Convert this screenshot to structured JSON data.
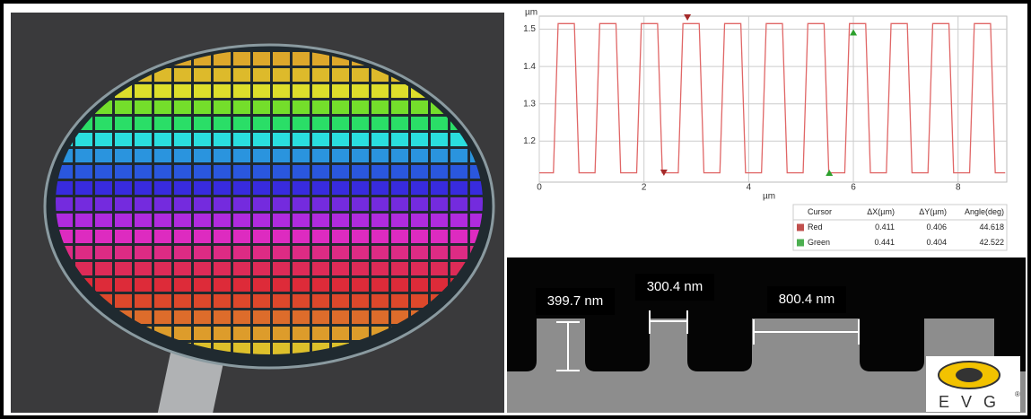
{
  "chart_data": {
    "type": "line",
    "y_label": "µm",
    "x_label": "µm",
    "x": [
      0,
      0.27,
      0.36,
      0.67,
      0.76,
      1.065,
      1.155,
      1.465,
      1.555,
      1.86,
      1.95,
      2.26,
      2.35,
      2.655,
      2.745,
      3.055,
      3.145,
      3.45,
      3.54,
      3.85,
      3.94,
      4.245,
      4.335,
      4.645,
      4.735,
      5.04,
      5.13,
      5.44,
      5.53,
      5.835,
      5.925,
      6.235,
      6.325,
      6.63,
      6.72,
      7.03,
      7.12,
      7.425,
      7.515,
      7.825,
      7.915,
      8.22,
      8.31,
      8.62,
      8.71,
      8.9
    ],
    "values": [
      1.115,
      1.115,
      1.515,
      1.515,
      1.115,
      1.115,
      1.515,
      1.515,
      1.115,
      1.115,
      1.515,
      1.515,
      1.115,
      1.115,
      1.515,
      1.515,
      1.115,
      1.115,
      1.515,
      1.515,
      1.115,
      1.115,
      1.515,
      1.515,
      1.115,
      1.115,
      1.515,
      1.515,
      1.115,
      1.115,
      1.515,
      1.515,
      1.115,
      1.115,
      1.515,
      1.515,
      1.115,
      1.115,
      1.515,
      1.515,
      1.115,
      1.115,
      1.515,
      1.515,
      1.115,
      1.115
    ],
    "color": "#e06666",
    "xlim": [
      0,
      8.93
    ],
    "ylim": [
      1.09,
      1.535
    ],
    "xticks": [
      0,
      2,
      4,
      6,
      8
    ],
    "yticks": [
      1.2,
      1.3,
      1.4,
      1.5
    ],
    "grid": true,
    "cursors": [
      {
        "color": "#a52a2a",
        "x": [
          2.83,
          2.38
        ]
      },
      {
        "color": "#2ca02c",
        "x": [
          6.0,
          5.54
        ]
      }
    ]
  },
  "table": {
    "header": [
      "Cursor",
      "ΔX(µm)",
      "ΔY(µm)",
      "Angle(deg)"
    ],
    "rows": [
      [
        "Red",
        "0.411",
        "0.406",
        "44.618"
      ],
      [
        "Green",
        "0.441",
        "0.404",
        "42.522"
      ]
    ],
    "swatches": [
      "#c0504d",
      "#4caf50"
    ]
  },
  "sem": {
    "labels": [
      "399.7 nm",
      "300.4 nm",
      "800.4 nm"
    ]
  },
  "logo": {
    "text": "E V G",
    "mark": "®"
  }
}
